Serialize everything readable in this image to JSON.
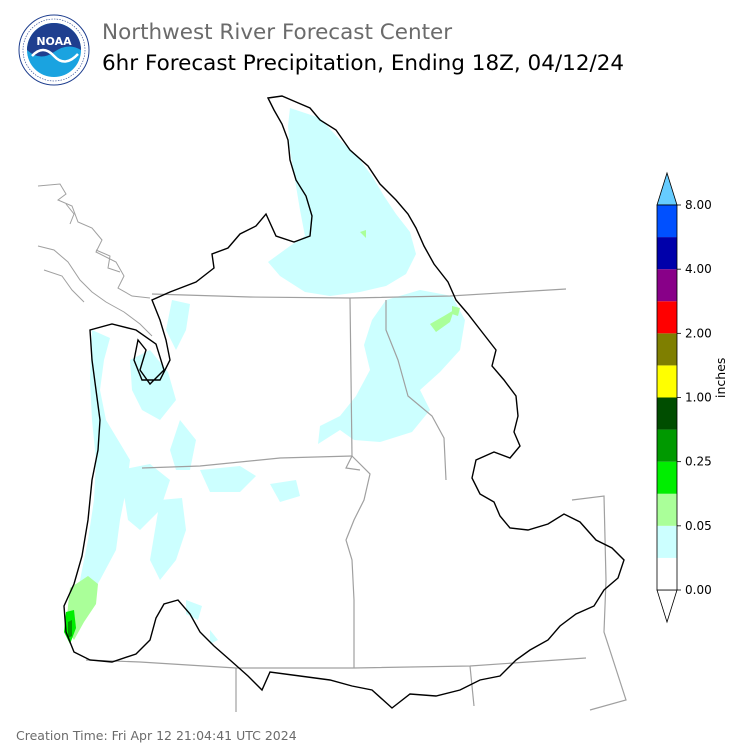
{
  "header": {
    "agency_title": "Northwest River Forecast Center",
    "product_title": "6hr Forecast Precipitation, Ending 18Z, 04/12/24"
  },
  "logo": {
    "icon": "noaa-logo-icon",
    "text": "NOAA",
    "ring_text": "NATIONAL OCEANIC AND ATMOSPHERIC ADMINISTRATION · U.S. DEPARTMENT OF COMMERCE",
    "colors": {
      "dark_blue": "#1f3f8f",
      "light_blue": "#1aa3e0",
      "white": "#ffffff"
    }
  },
  "legend": {
    "unit": "inches",
    "tick_labels": [
      "0.00",
      "0.05",
      "0.25",
      "1.00",
      "2.00",
      "4.00",
      "8.00"
    ],
    "bins": [
      {
        "color": "#ffffff"
      },
      {
        "color": "#ccffff"
      },
      {
        "color": "#aaff99"
      },
      {
        "color": "#00ee00"
      },
      {
        "color": "#009900"
      },
      {
        "color": "#004d00"
      },
      {
        "color": "#ffff00"
      },
      {
        "color": "#7f7f00"
      },
      {
        "color": "#ff0000"
      },
      {
        "color": "#880088"
      },
      {
        "color": "#0000aa"
      },
      {
        "color": "#0050ff"
      }
    ],
    "over_color": "#66ccff",
    "under_color": "#ffffff"
  },
  "map": {
    "basin_outline_color": "#000000",
    "state_border_color": "#a0a0a0",
    "light_precip_color": "#ccffff",
    "moderate_precip_color": "#aaff99",
    "heavy_precip_color": "#00ee00"
  },
  "footer": {
    "creation_time": "Creation Time: Fri Apr 12 21:04:41 UTC 2024"
  }
}
